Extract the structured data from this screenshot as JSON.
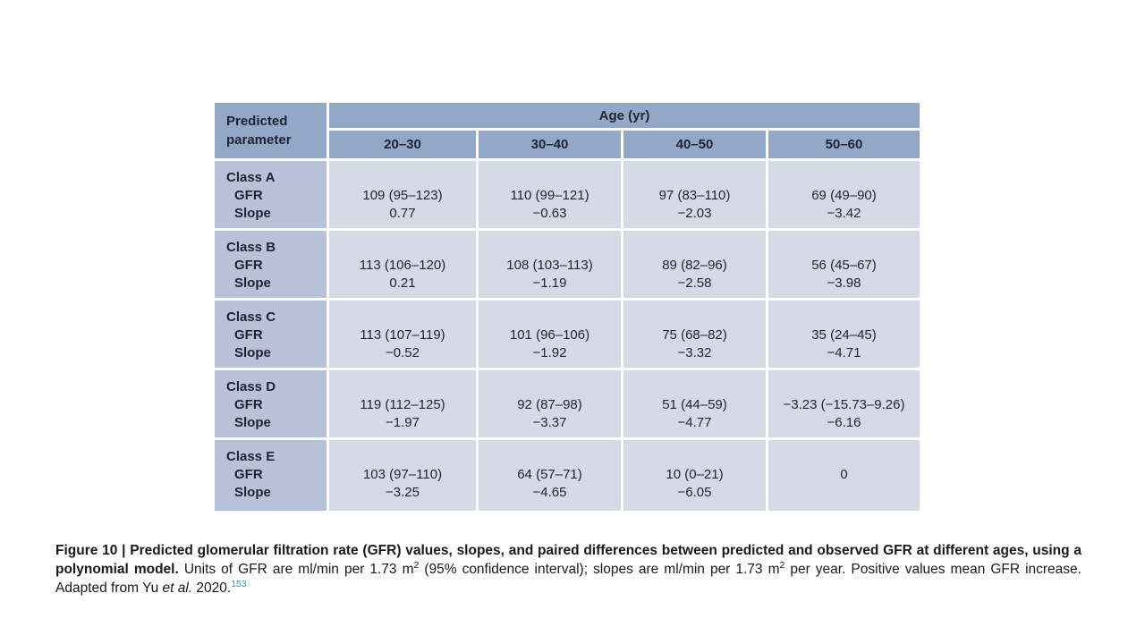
{
  "colors": {
    "header_fill": "#93a7c7",
    "row_label_fill": "#b8c3da",
    "data_cell_fill": "#d5dae5",
    "text": "#1e2430",
    "reference_link": "#2f9c9c",
    "background": "#ffffff"
  },
  "table": {
    "corner_header_line1": "Predicted",
    "corner_header_line2": "parameter",
    "age_group_header": "Age (yr)",
    "age_columns": [
      "20–30",
      "30–40",
      "40–50",
      "50–60"
    ],
    "row_sublabels": [
      "GFR",
      "Slope"
    ],
    "rows": [
      {
        "class_label": "Class A",
        "cells": [
          {
            "gfr": "109 (95–123)",
            "slope": "0.77"
          },
          {
            "gfr": "110 (99–121)",
            "slope": "−0.63"
          },
          {
            "gfr": "97 (83–110)",
            "slope": "−2.03"
          },
          {
            "gfr": "69 (49–90)",
            "slope": "−3.42"
          }
        ]
      },
      {
        "class_label": "Class B",
        "cells": [
          {
            "gfr": "113 (106–120)",
            "slope": "0.21"
          },
          {
            "gfr": "108 (103–113)",
            "slope": "−1.19"
          },
          {
            "gfr": "89 (82–96)",
            "slope": "−2.58"
          },
          {
            "gfr": "56 (45–67)",
            "slope": "−3.98"
          }
        ]
      },
      {
        "class_label": "Class C",
        "cells": [
          {
            "gfr": "113 (107–119)",
            "slope": "−0.52"
          },
          {
            "gfr": "101 (96–106)",
            "slope": "−1.92"
          },
          {
            "gfr": "75 (68–82)",
            "slope": "−3.32"
          },
          {
            "gfr": "35 (24–45)",
            "slope": "−4.71"
          }
        ]
      },
      {
        "class_label": "Class D",
        "cells": [
          {
            "gfr": "119 (112–125)",
            "slope": "−1.97"
          },
          {
            "gfr": "92 (87–98)",
            "slope": "−3.37"
          },
          {
            "gfr": "51 (44–59)",
            "slope": "−4.77"
          },
          {
            "gfr": "−3.23 (−15.73–9.26)",
            "slope": "−6.16"
          }
        ]
      },
      {
        "class_label": "Class E",
        "cells": [
          {
            "gfr": "103 (97–110)",
            "slope": "−3.25"
          },
          {
            "gfr": "64 (57–71)",
            "slope": "−4.65"
          },
          {
            "gfr": "10 (0–21)",
            "slope": "−6.05"
          },
          {
            "gfr": "0",
            "slope": ""
          }
        ]
      }
    ]
  },
  "caption": {
    "bold_part": "Figure 10 | Predicted glomerular filtration rate (GFR) values, slopes, and paired differences between predicted and observed GFR at different ages, using a polynomial model.",
    "text_1": " Units of GFR are ml/min per 1.73 m",
    "sup_1": "2",
    "text_2": " (95% confidence interval); slopes are ml/min per 1.73 m",
    "sup_2": "2",
    "text_3": " per year. Positive values mean GFR increase. Adapted from Yu ",
    "italic_part": "et al.",
    "text_4": " 2020.",
    "reference": "153"
  }
}
